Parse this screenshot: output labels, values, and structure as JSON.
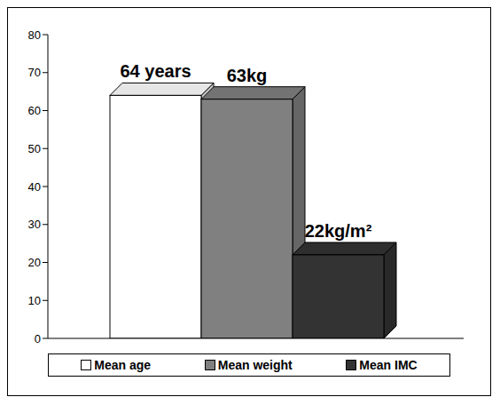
{
  "chart_data": {
    "type": "bar",
    "categories": [
      "Mean age",
      "Mean weight",
      "Mean IMC"
    ],
    "values": [
      64,
      63,
      22
    ],
    "value_labels": [
      "64 years",
      "63kg",
      "22kg/m²"
    ],
    "colors": [
      "#ffffff",
      "#808080",
      "#333333"
    ],
    "ylim": [
      0,
      80
    ],
    "yticks": [
      0,
      10,
      20,
      30,
      40,
      50,
      60,
      70,
      80
    ],
    "data_labels": true,
    "legend": "bottom",
    "tick_labels": "y"
  }
}
